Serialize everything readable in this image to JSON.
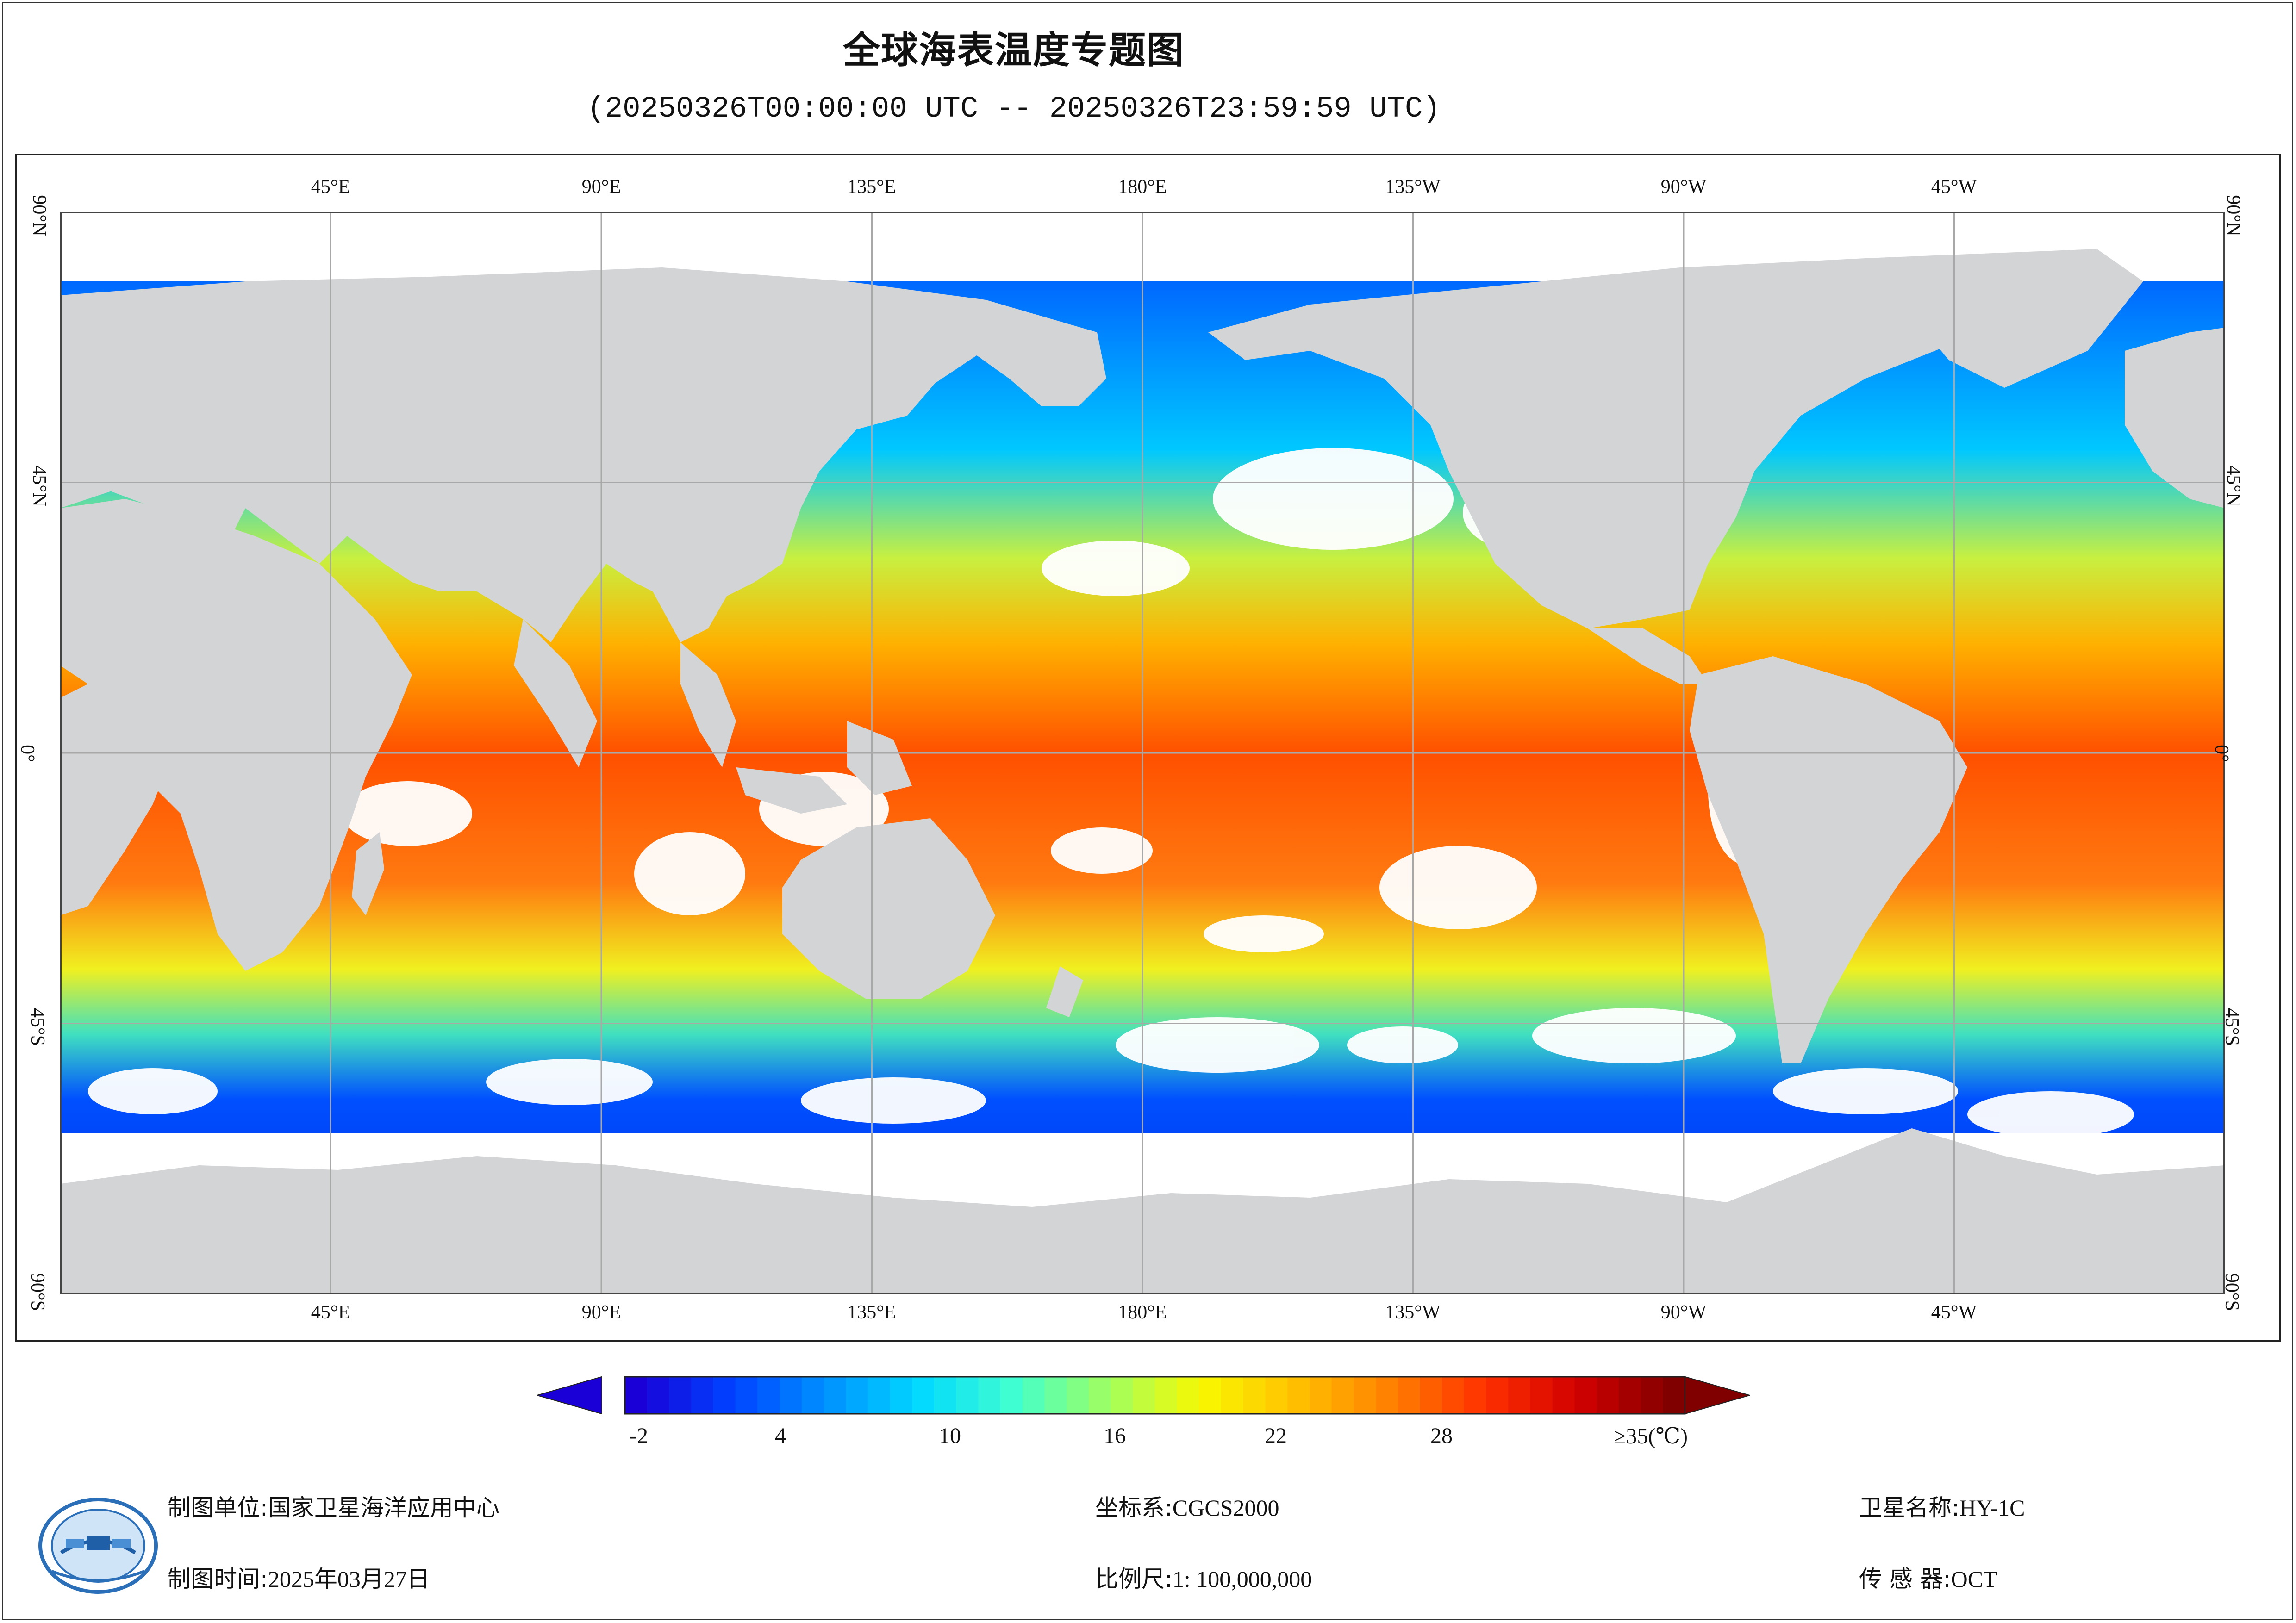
{
  "title": "全球海表温度专题图",
  "subtitle": "(20250326T00:00:00 UTC -- 20250326T23:59:59 UTC)",
  "map": {
    "top_lon_labels": [
      "45°E",
      "90°E",
      "135°E",
      "180°E",
      "135°W",
      "90°W",
      "45°W"
    ],
    "bottom_lon_labels": [
      "45°E",
      "90°E",
      "135°E",
      "180°E",
      "135°W",
      "90°W",
      "45°W"
    ],
    "left_lat_labels": [
      "90°N",
      "45°N",
      "0°",
      "45°S",
      "90°S"
    ],
    "right_lat_labels": [
      "90°N",
      "45°N",
      "0°",
      "45°S",
      "90°S"
    ],
    "colors": {
      "land": "#d3d4d6",
      "cloud": "#ffffff",
      "grid": "#a8a8a8"
    }
  },
  "legend": {
    "ticks": [
      "-2",
      "4",
      "10",
      "16",
      "22",
      "28",
      "≥35(℃)"
    ],
    "palette": [
      "#1a00d6",
      "#0040ff",
      "#0090ff",
      "#00d8ff",
      "#40ffd0",
      "#a0ff60",
      "#f8f800",
      "#ffc000",
      "#ff8000",
      "#ff3000",
      "#d00000",
      "#800000"
    ]
  },
  "info": {
    "unit_label": "制图单位:",
    "unit_value": "国家卫星海洋应用中心",
    "time_label": "制图时间:",
    "time_value": "2025年03月27日",
    "crs_label": "坐标系:",
    "crs_value": "CGCS2000",
    "scale_label": "比例尺:",
    "scale_value": "1: 100,000,000",
    "sat_label": "卫星名称:",
    "sat_value": "HY-1C",
    "sensor_label": "传 感 器:",
    "sensor_value": "OCT"
  },
  "logo": {
    "icon": "nsoas-emblem-icon"
  }
}
